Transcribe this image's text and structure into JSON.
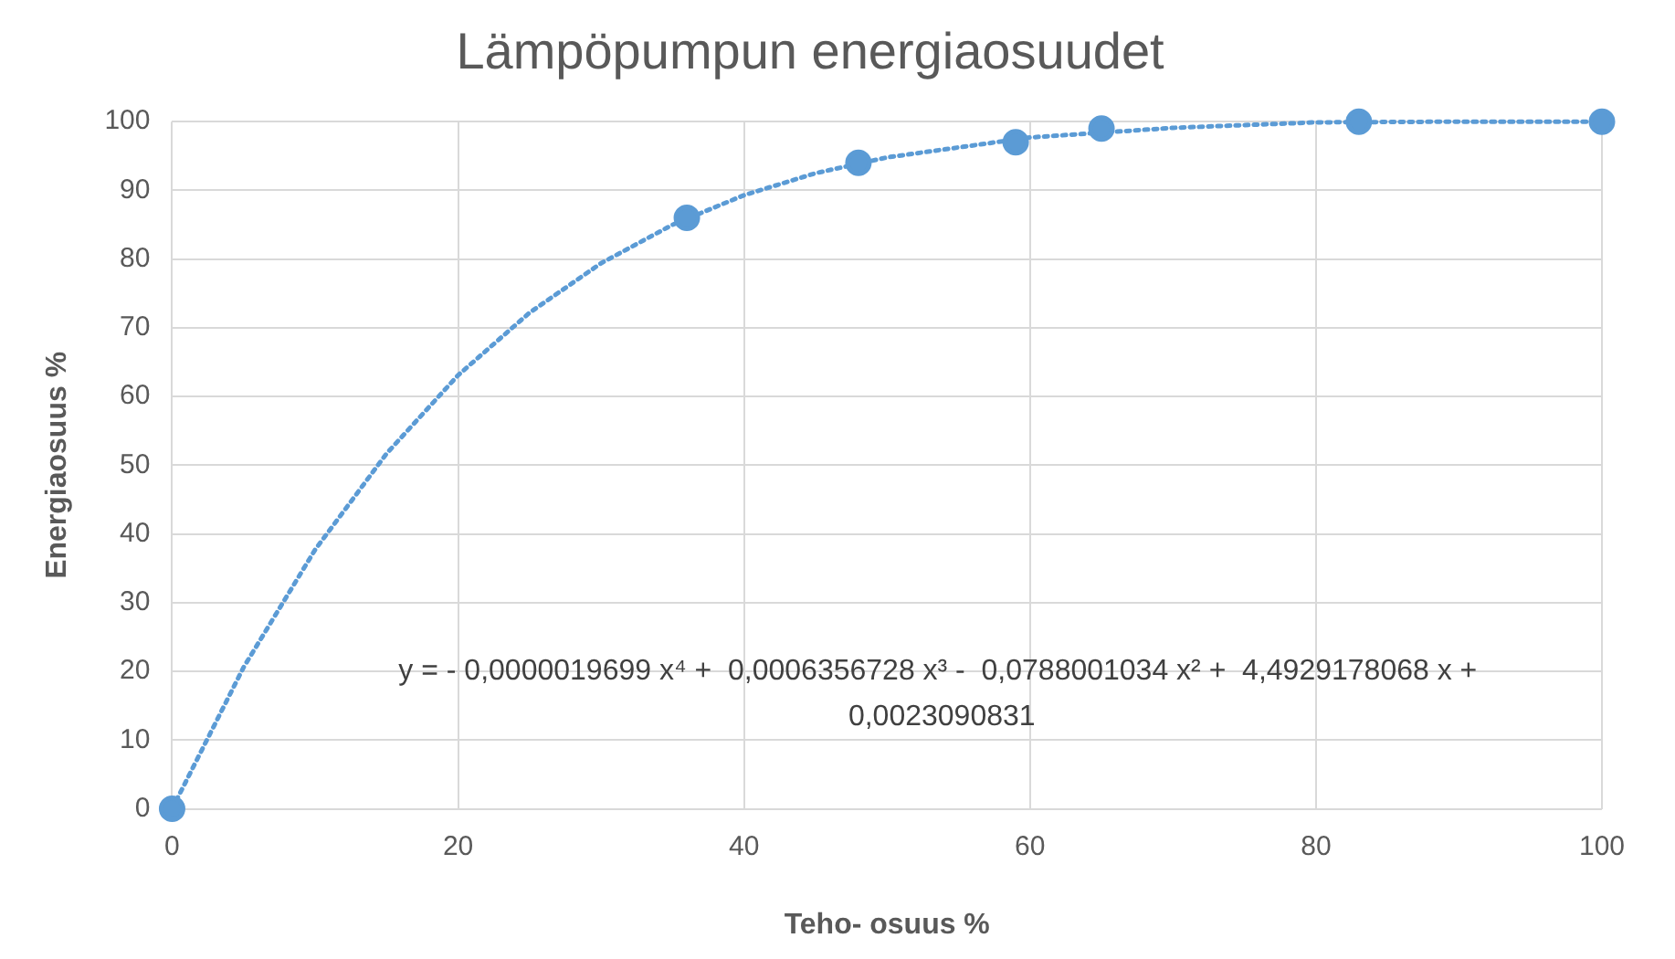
{
  "chart_data": {
    "type": "scatter",
    "title": "Lämpöpumpun energiaosuudet",
    "xlabel": "Teho- osuus %",
    "ylabel": "Energiaosuus %",
    "xlim": [
      0,
      100
    ],
    "xticks": [
      0,
      20,
      40,
      60,
      80,
      100
    ],
    "ylim": [
      0,
      100
    ],
    "yticks": [
      0,
      10,
      20,
      30,
      40,
      50,
      60,
      70,
      80,
      90,
      100
    ],
    "grid": true,
    "legend": false,
    "series": [
      {
        "color": "#5b9bd5",
        "marker": "circle",
        "x": [
          0,
          36,
          48,
          59,
          65,
          83,
          100
        ],
        "values": [
          0,
          86,
          94,
          97,
          99,
          100,
          100
        ]
      },
      {
        "type": "line",
        "color": "#5b9bd5",
        "marker": "none",
        "line_style": "dotted",
        "x": [
          0,
          5,
          10,
          15,
          20,
          25,
          30,
          35,
          40,
          45,
          50,
          60,
          70,
          80,
          90,
          100
        ],
        "values": [
          0,
          20.6,
          37.7,
          51.7,
          63.1,
          72.2,
          79.4,
          85.0,
          89.3,
          92.5,
          94.8,
          97.7,
          99.1,
          99.9,
          100,
          100
        ]
      }
    ],
    "annotations": [
      "y = - 0,0000019699 x⁴ +  0,0006356728 x³ -  0,0788001034 x² +  4,4929178068 x +  0,0023090831"
    ]
  }
}
